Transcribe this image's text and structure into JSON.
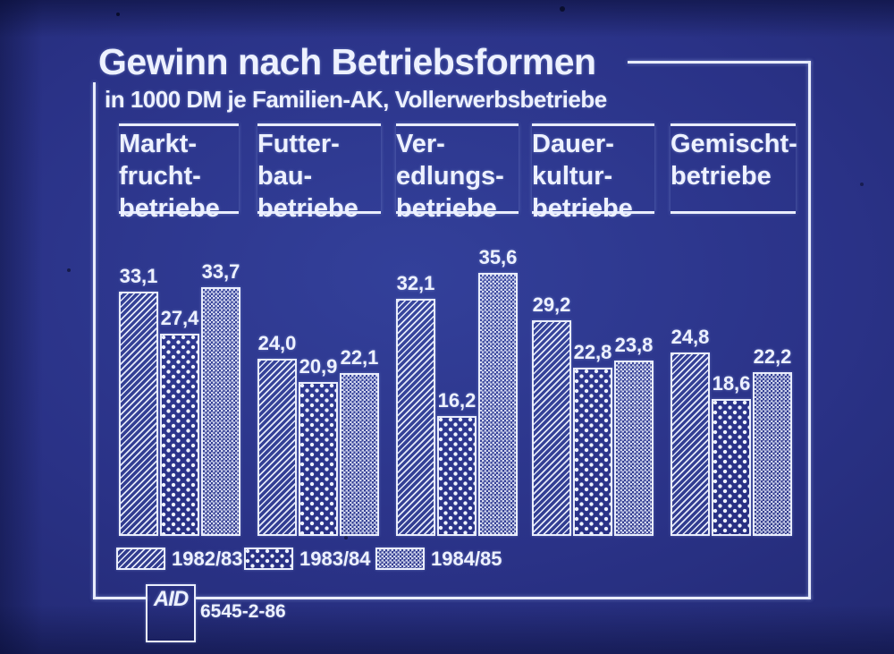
{
  "title": "Gewinn nach Betriebsformen",
  "subtitle": "in 1000 DM je Familien-AK, Vollerwerbsbetriebe",
  "logo_text": "AID",
  "source_code": "6545-2-86",
  "colors": {
    "background_blue": "#2a3287",
    "line_white": "#e9edfc"
  },
  "chart_data": {
    "type": "bar",
    "title": "Gewinn nach Betriebsformen",
    "subtitle": "in 1000 DM je Familien-AK, Vollerwerbsbetriebe",
    "unit": "1000 DM je Familien-AK",
    "categories": [
      "Marktfruchtbetriebe",
      "Futterbaubetriebe",
      "Veredlungsbetriebe",
      "Dauerkulturbetriebe",
      "Gemischtbetriebe"
    ],
    "category_label_lines": [
      [
        "Markt-",
        "frucht-",
        "betriebe"
      ],
      [
        "Futter-",
        "bau-",
        "betriebe"
      ],
      [
        "Ver-",
        "edlungs-",
        "betriebe"
      ],
      [
        "Dauer-",
        "kultur-",
        "betriebe"
      ],
      [
        "Gemischt-",
        "betriebe"
      ]
    ],
    "series": [
      {
        "name": "1982/83",
        "pattern": "diagonal-hatch",
        "values": [
          33.1,
          24.0,
          32.1,
          29.2,
          24.8
        ]
      },
      {
        "name": "1983/84",
        "pattern": "dots",
        "values": [
          27.4,
          20.9,
          16.2,
          22.8,
          18.6
        ]
      },
      {
        "name": "1984/85",
        "pattern": "fine-check",
        "values": [
          33.7,
          22.1,
          35.6,
          23.8,
          22.2
        ]
      }
    ],
    "value_label_format": "decimal-comma",
    "ylim": [
      0,
      36
    ],
    "grid": false,
    "legend_position": "bottom-left"
  }
}
